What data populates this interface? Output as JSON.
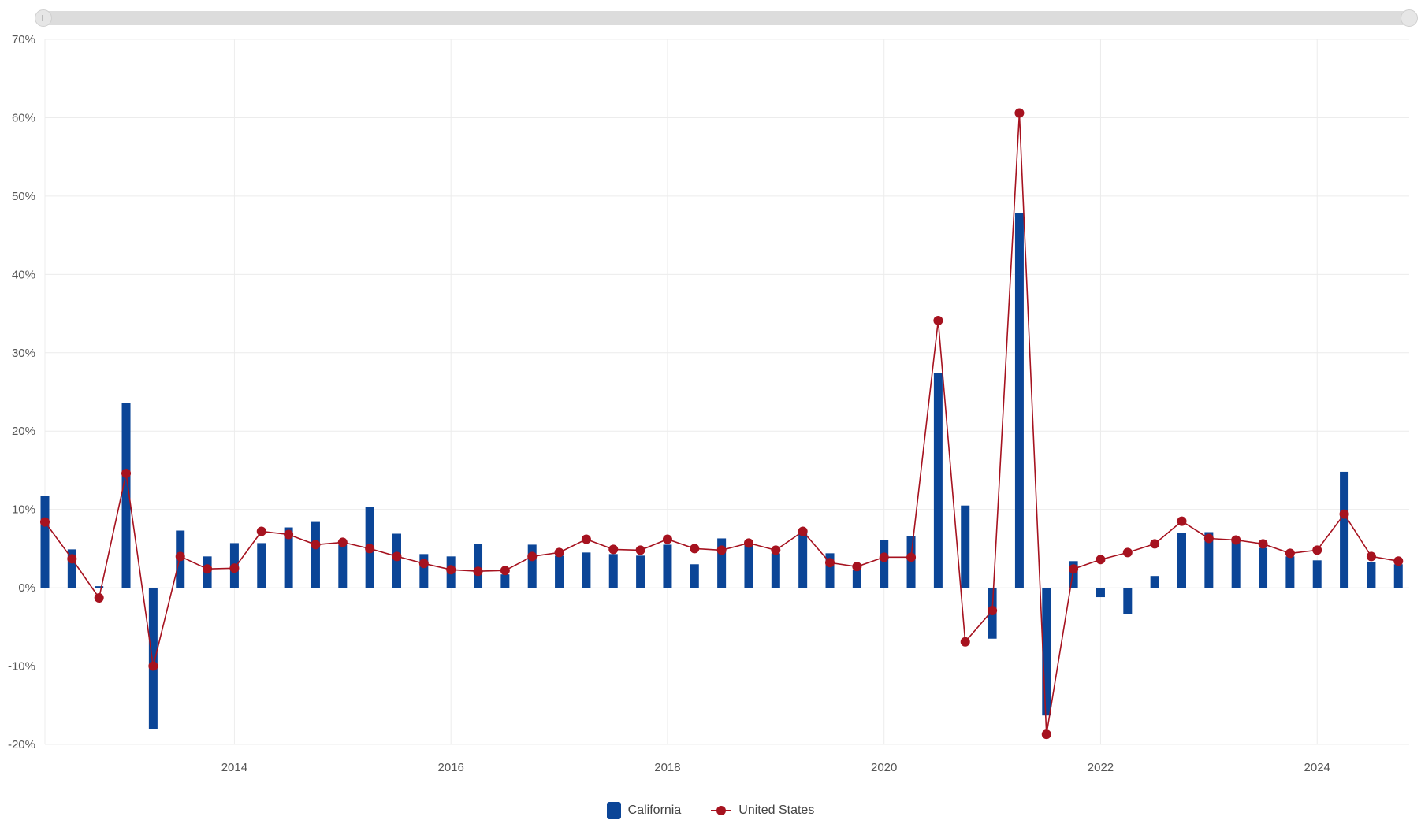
{
  "colors": {
    "california": "#0b4597",
    "united_states": "#a6121f",
    "grid": "#ececec"
  },
  "legend": {
    "california_label": "California",
    "us_label": "United States"
  },
  "chart_data": {
    "type": "bar+line",
    "title": "",
    "xlabel": "",
    "ylabel": "",
    "ylim": [
      -0.2,
      0.7
    ],
    "y_ticks": [
      "70%",
      "60%",
      "50%",
      "40%",
      "30%",
      "20%",
      "10%",
      "0%",
      "-10%",
      "-20%"
    ],
    "x_ticks": [
      "2014",
      "2016",
      "2018",
      "2020",
      "2022",
      "2024"
    ],
    "x_range": [
      2012.25,
      2024.85
    ],
    "grid": true,
    "legend_position": "bottom-center",
    "x": [
      2012.25,
      2012.5,
      2012.75,
      2013.0,
      2013.25,
      2013.5,
      2013.75,
      2014.0,
      2014.25,
      2014.5,
      2014.75,
      2015.0,
      2015.25,
      2015.5,
      2015.75,
      2016.0,
      2016.25,
      2016.5,
      2016.75,
      2017.0,
      2017.25,
      2017.5,
      2017.75,
      2018.0,
      2018.25,
      2018.5,
      2018.75,
      2019.0,
      2019.25,
      2019.5,
      2019.75,
      2020.0,
      2020.25,
      2020.5,
      2020.75,
      2021.0,
      2021.25,
      2021.5,
      2021.75,
      2022.0,
      2022.25,
      2022.5,
      2022.75,
      2023.0,
      2023.25,
      2023.5,
      2023.75,
      2024.0,
      2024.25,
      2024.5,
      2024.75
    ],
    "series": [
      {
        "name": "California",
        "kind": "bar",
        "values": [
          0.117,
          0.049,
          0.002,
          0.236,
          -0.18,
          0.073,
          0.04,
          0.057,
          0.057,
          0.077,
          0.084,
          0.055,
          0.103,
          0.069,
          0.043,
          0.04,
          0.056,
          0.017,
          0.055,
          0.041,
          0.045,
          0.043,
          0.041,
          0.055,
          0.03,
          0.063,
          0.055,
          0.044,
          0.07,
          0.044,
          0.023,
          0.061,
          0.066,
          0.274,
          0.105,
          -0.065,
          0.478,
          -0.163,
          0.034,
          -0.012,
          -0.034,
          0.015,
          0.07,
          0.071,
          0.059,
          0.051,
          0.04,
          0.035,
          0.148,
          0.033,
          0.03
        ]
      },
      {
        "name": "United States",
        "kind": "line",
        "values": [
          0.084,
          0.037,
          -0.013,
          0.146,
          -0.1,
          0.04,
          0.024,
          0.025,
          0.072,
          0.068,
          0.055,
          0.058,
          0.05,
          0.04,
          0.031,
          0.023,
          0.021,
          0.022,
          0.04,
          0.045,
          0.062,
          0.049,
          0.048,
          0.062,
          0.05,
          0.048,
          0.057,
          0.048,
          0.072,
          0.032,
          0.027,
          0.039,
          0.039,
          0.341,
          -0.069,
          -0.029,
          0.606,
          -0.187,
          0.024,
          0.036,
          0.045,
          0.056,
          0.085,
          0.063,
          0.061,
          0.056,
          0.044,
          0.048,
          0.094,
          0.04,
          0.034
        ]
      }
    ]
  }
}
